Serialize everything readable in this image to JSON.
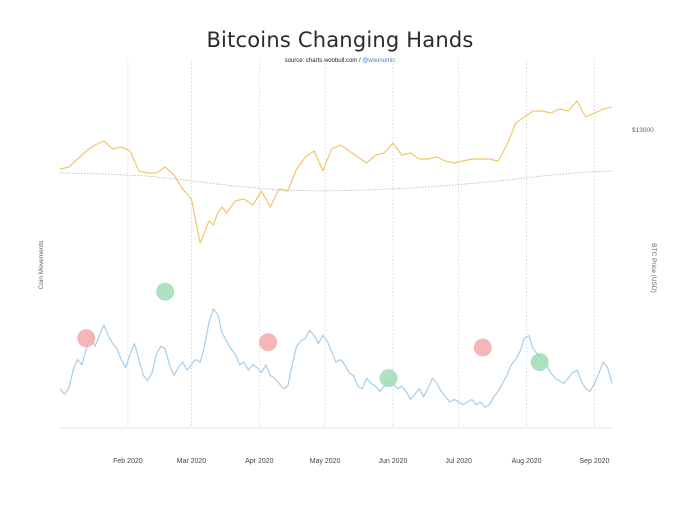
{
  "chart_data": {
    "type": "line",
    "title": "Bitcoins Changing Hands",
    "subtitle_source": "source: charts.woobull.com / ",
    "subtitle_handle": "@woonomic",
    "ylabel_left": "Coin Movements",
    "ylabel_right": "BTC Price (USD)",
    "right_tick": "$13000",
    "x_ticks": [
      "Feb 2020",
      "Mar 2020",
      "Apr 2020",
      "May 2020",
      "Jun 2020",
      "Jul 2020",
      "Aug 2020",
      "Sep 2020"
    ],
    "x_tick_days": [
      31,
      60,
      91,
      121,
      152,
      182,
      213,
      244
    ],
    "x_range": [
      0,
      252
    ],
    "grid": "vertical dotted at month starts",
    "series": [
      {
        "name": "BTC Price (USD)",
        "color": "#f2c66d",
        "y_range": [
          3000,
          13000
        ],
        "x": [
          0,
          4,
          8,
          12,
          16,
          20,
          24,
          28,
          32,
          36,
          40,
          44,
          48,
          52,
          56,
          60,
          64,
          68,
          70,
          72,
          74,
          76,
          80,
          84,
          88,
          92,
          96,
          100,
          104,
          108,
          112,
          116,
          120,
          124,
          128,
          132,
          136,
          140,
          144,
          148,
          152,
          156,
          160,
          164,
          168,
          172,
          176,
          180,
          184,
          188,
          192,
          196,
          200,
          204,
          208,
          212,
          216,
          220,
          224,
          228,
          232,
          236,
          240,
          244,
          248,
          252
        ],
        "values": [
          8800,
          8900,
          9300,
          9700,
          10000,
          10200,
          9800,
          9900,
          9700,
          8700,
          8600,
          8600,
          8900,
          8500,
          7800,
          7300,
          5100,
          6200,
          6000,
          6600,
          6900,
          6600,
          7200,
          7300,
          7000,
          7700,
          6900,
          7800,
          7700,
          8800,
          9400,
          9700,
          8700,
          9800,
          10000,
          9700,
          9400,
          9100,
          9500,
          9600,
          10100,
          9500,
          9600,
          9300,
          9300,
          9400,
          9200,
          9100,
          9200,
          9300,
          9300,
          9300,
          9200,
          10000,
          11100,
          11400,
          11700,
          11700,
          11600,
          11800,
          11700,
          12200,
          11400,
          11600,
          11800,
          11900
        ]
      },
      {
        "name": "Price moving average",
        "color": "#bbbbbb",
        "y_range": [
          3000,
          13000
        ],
        "x": [
          0,
          20,
          40,
          60,
          80,
          100,
          120,
          140,
          160,
          180,
          200,
          220,
          240,
          252
        ],
        "values": [
          8600,
          8550,
          8450,
          8200,
          7950,
          7750,
          7700,
          7750,
          7850,
          8000,
          8200,
          8450,
          8650,
          8700
        ]
      },
      {
        "name": "Coin Movements",
        "color": "#a9cde8",
        "y_range": [
          0,
          100
        ],
        "x": [
          0,
          2,
          4,
          6,
          8,
          10,
          12,
          14,
          16,
          18,
          20,
          22,
          24,
          26,
          28,
          30,
          32,
          34,
          36,
          38,
          40,
          42,
          44,
          46,
          48,
          50,
          52,
          54,
          56,
          58,
          60,
          62,
          64,
          66,
          68,
          70,
          72,
          74,
          76,
          78,
          80,
          82,
          84,
          86,
          88,
          90,
          92,
          94,
          96,
          98,
          100,
          102,
          104,
          106,
          108,
          110,
          112,
          114,
          116,
          118,
          120,
          122,
          124,
          126,
          128,
          130,
          132,
          134,
          136,
          138,
          140,
          142,
          144,
          146,
          148,
          150,
          152,
          154,
          156,
          158,
          160,
          162,
          164,
          166,
          168,
          170,
          172,
          174,
          176,
          178,
          180,
          182,
          184,
          186,
          188,
          190,
          192,
          194,
          196,
          198,
          200,
          202,
          204,
          206,
          208,
          210,
          212,
          214,
          216,
          218,
          220,
          222,
          224,
          226,
          228,
          230,
          232,
          234,
          236,
          238,
          240,
          242,
          244,
          246,
          248,
          250,
          252
        ],
        "values": [
          22,
          18,
          22,
          36,
          44,
          40,
          52,
          62,
          54,
          62,
          70,
          62,
          56,
          52,
          44,
          38,
          48,
          56,
          44,
          32,
          28,
          34,
          48,
          54,
          52,
          40,
          32,
          38,
          42,
          36,
          40,
          44,
          42,
          54,
          72,
          82,
          78,
          64,
          58,
          52,
          48,
          40,
          42,
          36,
          40,
          38,
          34,
          40,
          32,
          30,
          26,
          22,
          24,
          40,
          54,
          58,
          60,
          66,
          62,
          56,
          62,
          58,
          50,
          42,
          44,
          40,
          34,
          32,
          24,
          22,
          30,
          26,
          24,
          20,
          24,
          28,
          26,
          22,
          24,
          20,
          14,
          18,
          22,
          16,
          22,
          30,
          26,
          20,
          16,
          12,
          14,
          12,
          10,
          12,
          14,
          10,
          12,
          8,
          10,
          16,
          20,
          26,
          32,
          40,
          44,
          50,
          60,
          62,
          52,
          48,
          44,
          40,
          34,
          30,
          28,
          26,
          30,
          34,
          36,
          28,
          22,
          20,
          26,
          34,
          42,
          38,
          26
        ]
      }
    ],
    "markers": [
      {
        "x": 12,
        "y": 60,
        "color": "#f2a9aa",
        "series": "Coin Movements"
      },
      {
        "x": 48,
        "y": 95,
        "color": "#9fdcb4",
        "series": "Coin Movements"
      },
      {
        "x": 95,
        "y": 57,
        "color": "#f2a9aa",
        "series": "Coin Movements"
      },
      {
        "x": 150,
        "y": 30,
        "color": "#9fdcb4",
        "series": "Coin Movements"
      },
      {
        "x": 193,
        "y": 53,
        "color": "#f2a9aa",
        "series": "Coin Movements"
      },
      {
        "x": 219,
        "y": 42,
        "color": "#9fdcb4",
        "series": "Coin Movements"
      }
    ]
  }
}
